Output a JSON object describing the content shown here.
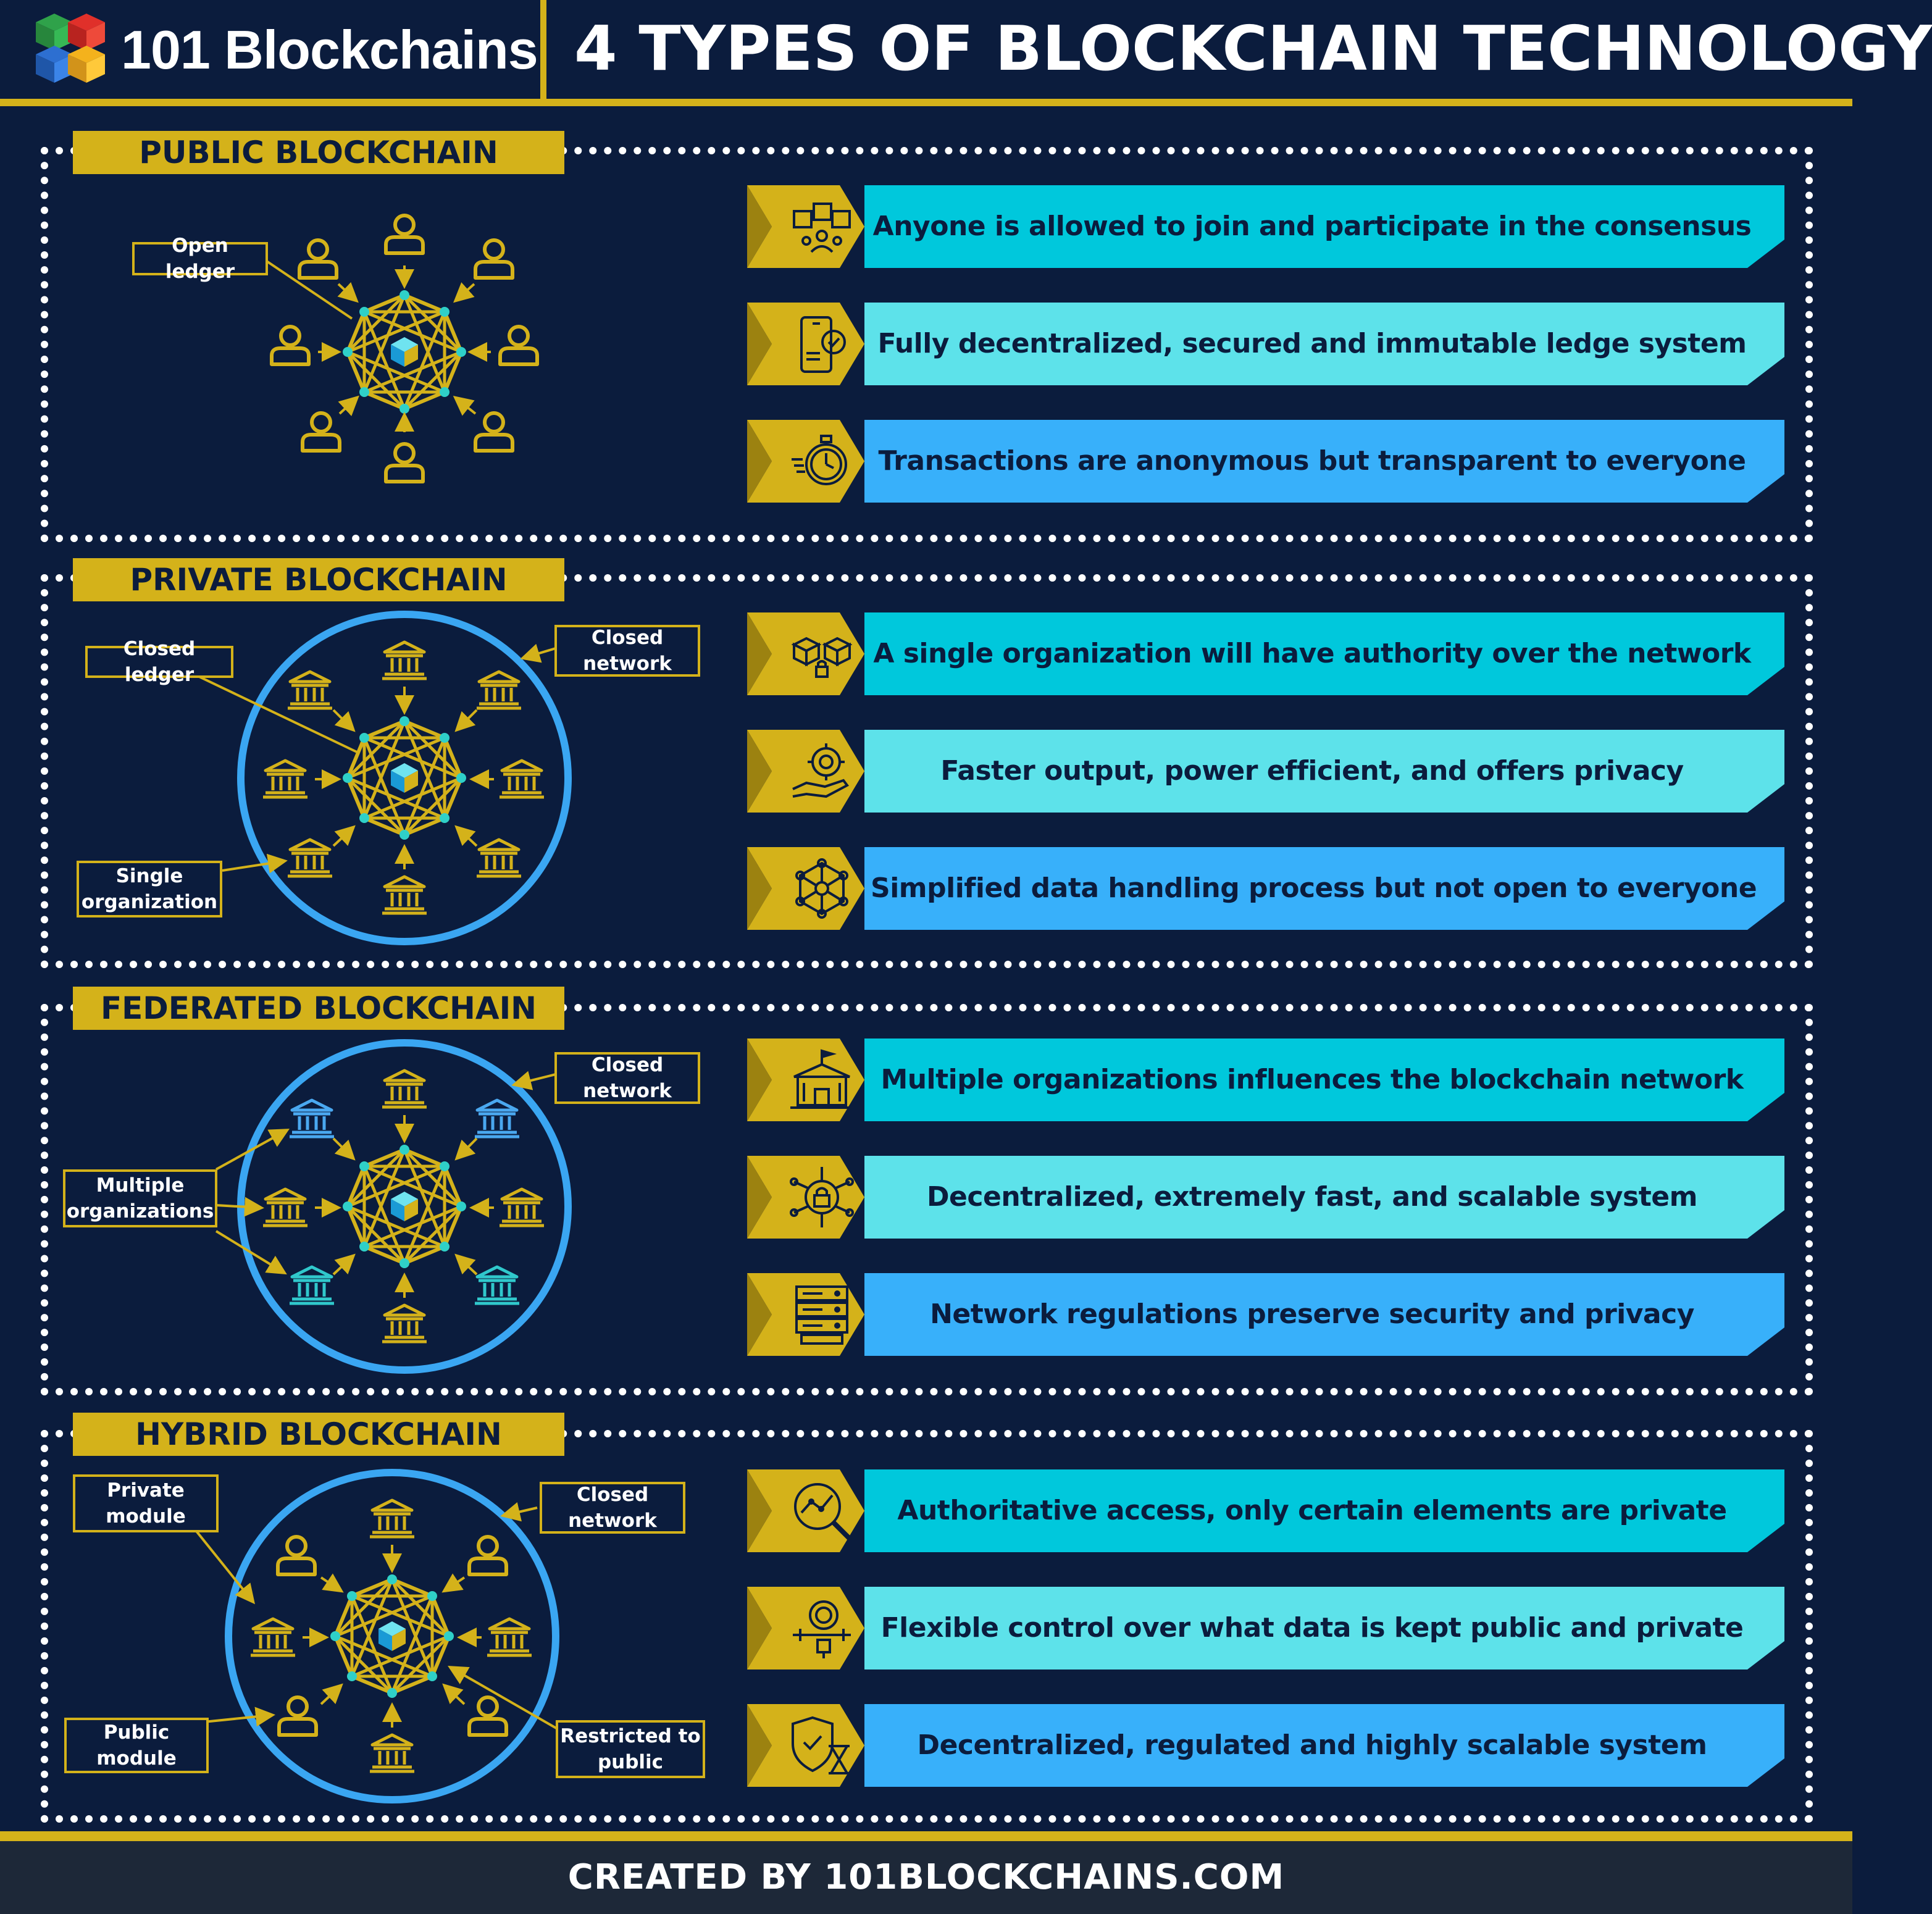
{
  "brand": {
    "name": "101 Blockchains"
  },
  "title": "4 TYPES OF BLOCKCHAIN TECHNOLOGY",
  "colors": {
    "background": "#0b1c3d",
    "gold": "#d4b21a",
    "cyan": "#00c8dc",
    "light_cyan": "#5de2ea",
    "sky_blue": "#38b0fa",
    "ring_blue": "#3aa6f2"
  },
  "sections": [
    {
      "label": "PUBLIC BLOCKCHAIN",
      "callouts": [
        "Open ledger"
      ],
      "features": [
        {
          "icon": "blocks-network-icon",
          "text": "Anyone is allowed to join and participate in the consensus"
        },
        {
          "icon": "phone-check-icon",
          "text": "Fully decentralized, secured and immutable ledge system"
        },
        {
          "icon": "stopwatch-icon",
          "text": "Transactions are anonymous but transparent to everyone"
        }
      ]
    },
    {
      "label": "PRIVATE BLOCKCHAIN",
      "callouts": [
        "Closed ledger",
        "Closed network",
        "Single organization"
      ],
      "features": [
        {
          "icon": "locked-blocks-icon",
          "text": "A single organization will have authority over the network"
        },
        {
          "icon": "gear-hand-icon",
          "text": "Faster output, power efficient, and offers privacy"
        },
        {
          "icon": "node-network-icon",
          "text": "Simplified data handling process but not open to everyone"
        }
      ]
    },
    {
      "label": "FEDERATED BLOCKCHAIN",
      "callouts": [
        "Closed network",
        "Multiple organizations"
      ],
      "features": [
        {
          "icon": "organization-building-icon",
          "text": "Multiple organizations influences the blockchain network"
        },
        {
          "icon": "padlock-circuit-icon",
          "text": "Decentralized, extremely fast, and scalable system"
        },
        {
          "icon": "server-stack-icon",
          "text": "Network regulations preserve security and privacy"
        }
      ]
    },
    {
      "label": "HYBRID BLOCKCHAIN",
      "callouts": [
        "Private module",
        "Closed network",
        "Public module",
        "Restricted to public"
      ],
      "features": [
        {
          "icon": "magnifier-chart-icon",
          "text": "Authoritative access, only certain elements are private"
        },
        {
          "icon": "search-control-icon",
          "text": "Flexible control over what data is kept public and private"
        },
        {
          "icon": "shield-hourglass-icon",
          "text": "Decentralized, regulated and highly scalable system"
        }
      ]
    }
  ],
  "footer": "CREATED BY 101BLOCKCHAINS.COM"
}
